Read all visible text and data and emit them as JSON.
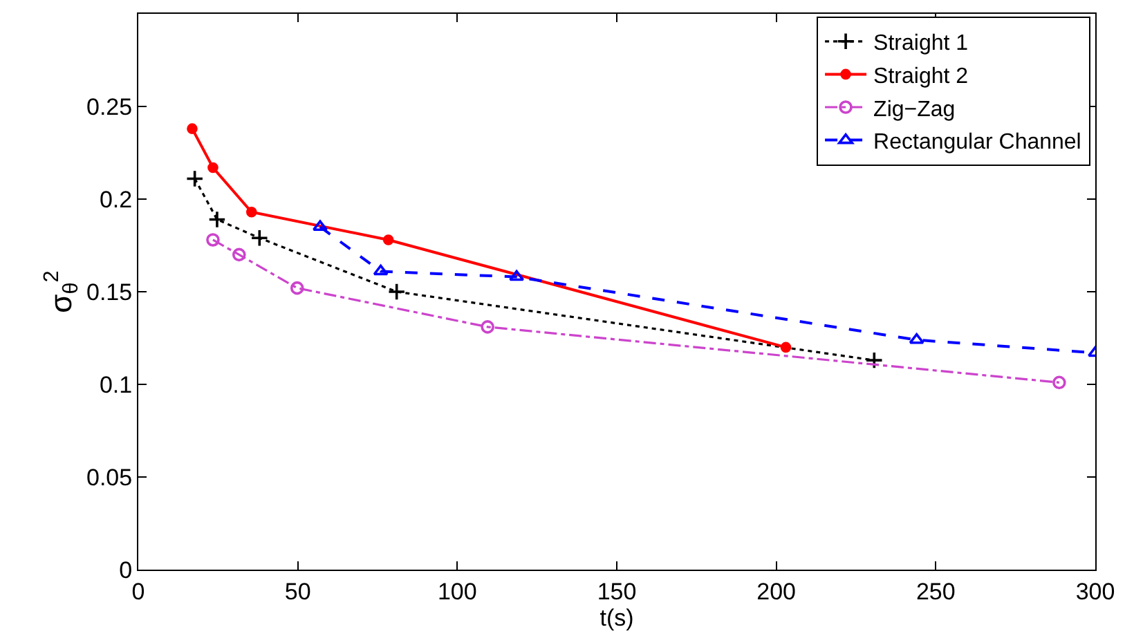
{
  "chart_data": {
    "type": "line",
    "xlabel": "t(s)",
    "ylabel": "σ$_{θ}$$^{2}$",
    "xlim": [
      0,
      300
    ],
    "xticks": [
      0,
      50,
      100,
      150,
      200,
      250,
      300
    ],
    "ylim": [
      0,
      0.3
    ],
    "yticks": [
      0,
      0.05,
      0.1,
      0.15,
      0.2,
      0.25
    ],
    "legend": "top right",
    "series": [
      {
        "name": "Straight 1",
        "color": "#000000",
        "marker": "cross",
        "line_style": "dotted",
        "x": [
          17.7,
          24.7,
          38,
          81,
          230.7
        ],
        "values": [
          0.211,
          0.189,
          0.179,
          0.15,
          0.113
        ]
      },
      {
        "name": "Straight 2",
        "color": "#ff0000",
        "marker": "circle",
        "line_style": "solid",
        "x": [
          16.9,
          23.4,
          35.5,
          78.4,
          203
        ],
        "values": [
          0.238,
          0.217,
          0.193,
          0.178,
          0.12
        ]
      },
      {
        "name": "Zig−Zag",
        "color": "#cc44cc",
        "marker": "circle-open",
        "line_style": "dashdot",
        "x": [
          23.4,
          31.6,
          49.8,
          109.5,
          288.7
        ],
        "values": [
          0.178,
          0.17,
          0.152,
          0.131,
          0.101
        ]
      },
      {
        "name": "Rectangular Channel",
        "color": "#0000ff",
        "marker": "triangle",
        "line_style": "dashed",
        "x": [
          57,
          76,
          118.6,
          244,
          300
        ],
        "values": [
          0.185,
          0.161,
          0.158,
          0.124,
          0.117
        ]
      }
    ]
  }
}
